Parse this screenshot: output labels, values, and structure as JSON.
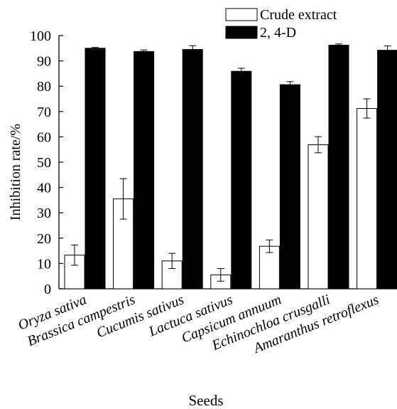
{
  "chart_data": {
    "type": "bar",
    "title": "",
    "xlabel": "Seeds",
    "ylabel": "Inhibition rate/%",
    "ylim": [
      0,
      100
    ],
    "yticks": [
      0,
      10,
      20,
      30,
      40,
      50,
      60,
      70,
      80,
      90,
      100
    ],
    "grid": false,
    "legend_position": "top-right",
    "categories": [
      "Oryza sativa",
      "Brassica campestris",
      "Cucumis sativus",
      "Lactuca sativus",
      "Capsicum annuum",
      "Echinochloa crusgalli",
      "Amaranthus retroflexus"
    ],
    "series": [
      {
        "name": "Crude extract",
        "fill": "#ffffff",
        "stroke": "#000000",
        "values": [
          13.3,
          35.5,
          11.0,
          5.5,
          16.8,
          56.9,
          71.2
        ],
        "errors": [
          4.0,
          8.0,
          3.0,
          2.5,
          2.5,
          3.2,
          3.8
        ]
      },
      {
        "name": "2, 4-D",
        "fill": "#000000",
        "stroke": "#000000",
        "values": [
          95.0,
          93.7,
          94.5,
          85.9,
          80.6,
          96.2,
          94.2
        ],
        "errors": [
          0.3,
          0.6,
          1.5,
          1.2,
          1.2,
          0.5,
          1.7
        ]
      }
    ]
  }
}
